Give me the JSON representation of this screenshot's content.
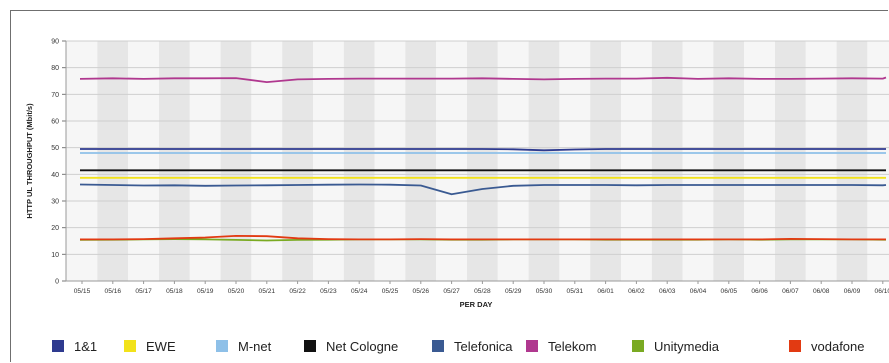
{
  "chart_data": {
    "type": "line",
    "title": "",
    "xlabel": "PER DAY",
    "ylabel": "HTTP UL THROUGHPUT (Mbit/s)",
    "ylim": [
      0,
      90
    ],
    "yticks": [
      0,
      10,
      20,
      30,
      40,
      50,
      60,
      70,
      80,
      90
    ],
    "grid": true,
    "legend_position": "bottom",
    "categories": [
      "05/15",
      "05/16",
      "05/17",
      "05/18",
      "05/19",
      "05/20",
      "05/21",
      "05/22",
      "05/23",
      "05/24",
      "05/25",
      "05/26",
      "05/27",
      "05/28",
      "05/29",
      "05/30",
      "05/31",
      "06/01",
      "06/02",
      "06/03",
      "06/04",
      "06/05",
      "06/06",
      "06/07",
      "06/08",
      "06/09",
      "06/10",
      "06/1"
    ],
    "series": [
      {
        "name": "1&1",
        "color": "#2e3a8f",
        "values": [
          49.5,
          49.5,
          49.5,
          49.5,
          49.5,
          49.5,
          49.5,
          49.5,
          49.5,
          49.5,
          49.5,
          49.5,
          49.5,
          49.5,
          49.4,
          49.0,
          49.3,
          49.5,
          49.5,
          49.5,
          49.5,
          49.5,
          49.5,
          49.5,
          49.5,
          49.5,
          49.5,
          49.5
        ]
      },
      {
        "name": "EWE",
        "color": "#f2e21a",
        "values": [
          38.7,
          38.7,
          38.7,
          38.7,
          38.7,
          38.7,
          38.7,
          38.7,
          38.7,
          38.7,
          38.7,
          38.7,
          38.7,
          38.7,
          38.7,
          38.7,
          38.7,
          38.7,
          38.7,
          38.7,
          38.7,
          38.7,
          38.7,
          38.7,
          38.7,
          38.7,
          38.7,
          38.7
        ]
      },
      {
        "name": "M-net",
        "color": "#8ec0e8",
        "values": [
          48.0,
          48.0,
          48.0,
          48.0,
          48.0,
          48.0,
          48.0,
          48.0,
          48.0,
          48.0,
          48.0,
          48.0,
          48.0,
          48.0,
          48.0,
          48.0,
          48.0,
          48.0,
          48.0,
          48.0,
          48.0,
          48.0,
          48.0,
          48.0,
          48.0,
          48.0,
          48.0,
          48.0
        ]
      },
      {
        "name": "Net Cologne",
        "color": "#111111",
        "values": [
          41.5,
          41.5,
          41.5,
          41.5,
          41.5,
          41.5,
          41.5,
          41.5,
          41.5,
          41.5,
          41.5,
          41.5,
          41.5,
          41.5,
          41.5,
          41.5,
          41.5,
          41.5,
          41.5,
          41.5,
          41.5,
          41.5,
          41.5,
          41.5,
          41.5,
          41.5,
          41.5,
          41.5
        ]
      },
      {
        "name": "Telefonica",
        "color": "#3a5a92",
        "values": [
          36.2,
          36.0,
          35.8,
          35.9,
          35.7,
          35.8,
          35.9,
          36.0,
          36.1,
          36.2,
          36.1,
          35.8,
          32.5,
          34.5,
          35.7,
          36.0,
          36.0,
          36.0,
          35.9,
          36.0,
          36.0,
          36.0,
          36.0,
          36.0,
          36.0,
          36.0,
          35.9,
          36.0
        ]
      },
      {
        "name": "Telekom",
        "color": "#b0388f",
        "values": [
          75.8,
          76.0,
          75.8,
          76.0,
          76.0,
          76.1,
          74.6,
          75.6,
          75.8,
          75.9,
          75.9,
          75.9,
          75.9,
          76.0,
          75.8,
          75.6,
          75.8,
          75.9,
          75.9,
          76.2,
          75.8,
          76.0,
          75.8,
          75.8,
          75.9,
          76.0,
          75.9,
          76.3
        ]
      },
      {
        "name": "Unitymedia",
        "color": "#7aaa22",
        "values": [
          15.4,
          15.5,
          15.6,
          15.7,
          15.6,
          15.4,
          15.2,
          15.4,
          15.5,
          15.6,
          15.6,
          15.6,
          15.5,
          15.5,
          15.6,
          15.6,
          15.6,
          15.5,
          15.5,
          15.5,
          15.5,
          15.6,
          15.5,
          15.6,
          15.6,
          15.6,
          15.5,
          15.5
        ]
      },
      {
        "name": "vodafone",
        "color": "#e23a12",
        "values": [
          15.6,
          15.6,
          15.7,
          16.0,
          16.3,
          16.9,
          16.8,
          16.0,
          15.7,
          15.6,
          15.6,
          15.7,
          15.6,
          15.6,
          15.6,
          15.6,
          15.6,
          15.6,
          15.6,
          15.6,
          15.6,
          15.6,
          15.6,
          15.8,
          15.7,
          15.6,
          15.6,
          15.6
        ]
      }
    ]
  }
}
